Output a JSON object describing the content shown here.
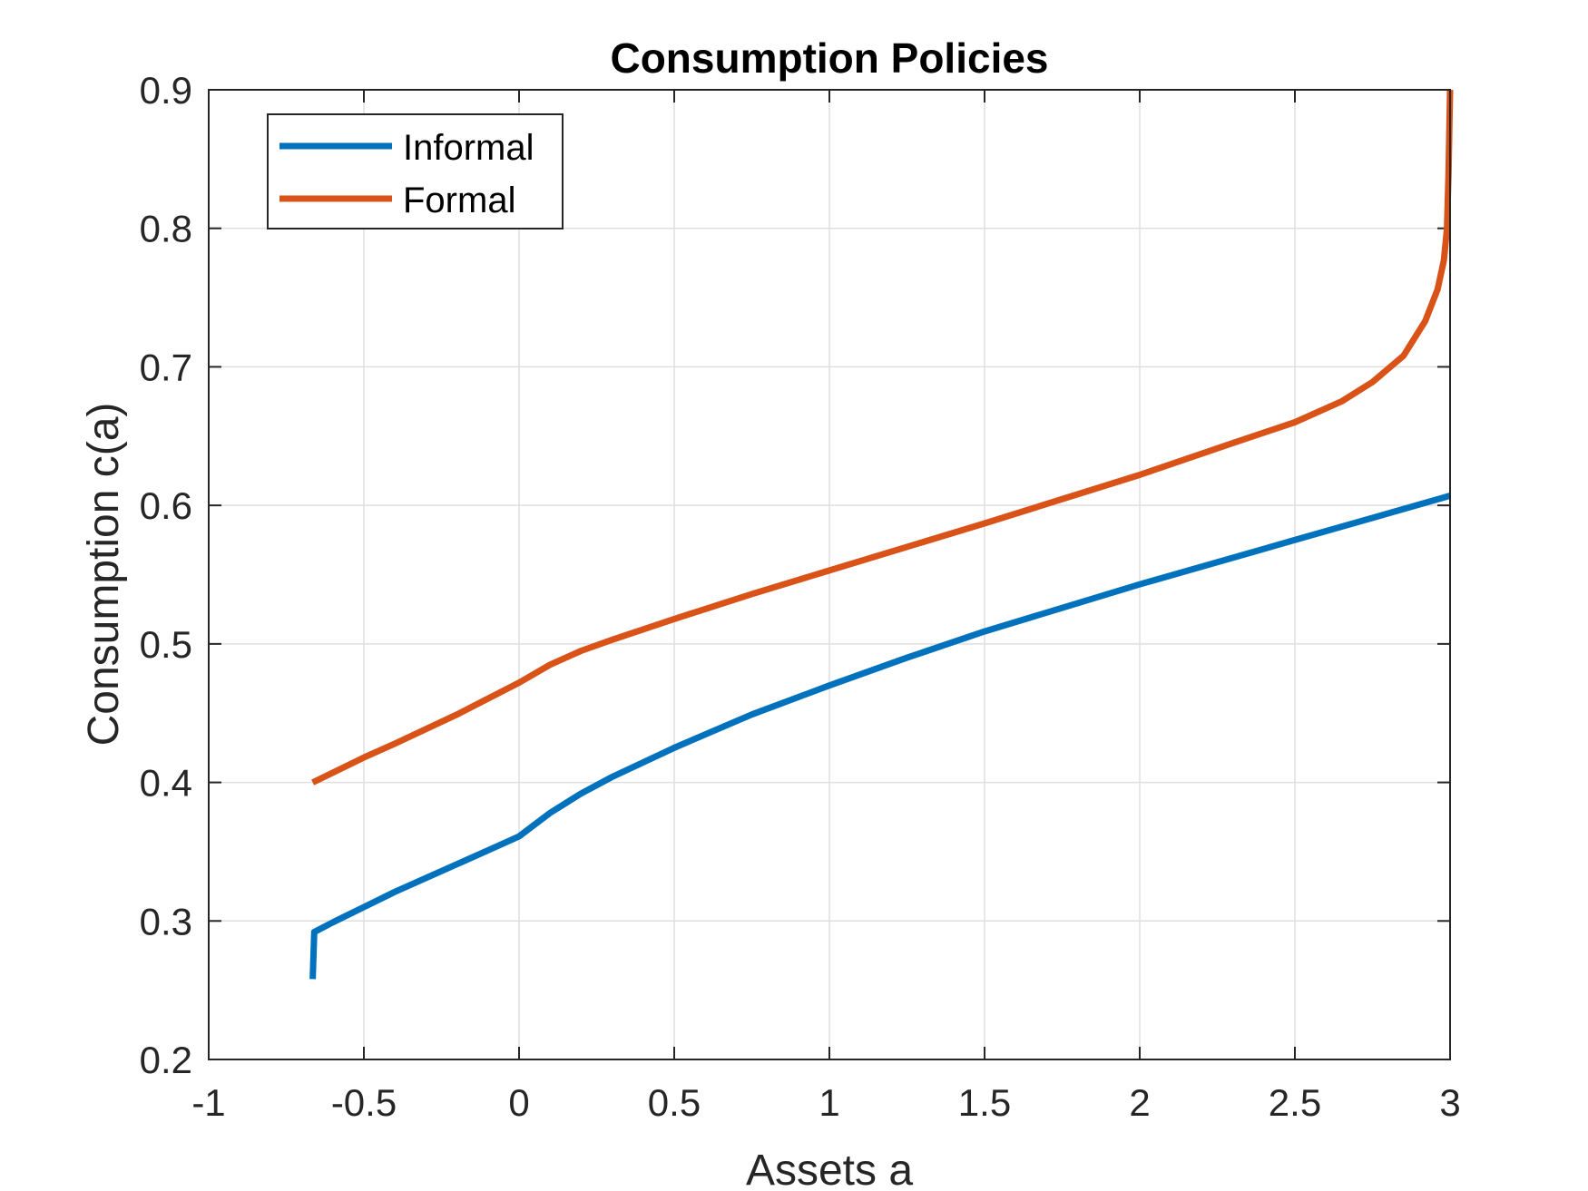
{
  "chart_data": {
    "type": "line",
    "title": "Consumption Policies",
    "xlabel": "Assets a",
    "ylabel": "Consumption c(a)",
    "xlim": [
      -1,
      3
    ],
    "ylim": [
      0.2,
      0.9
    ],
    "xticks": [
      -1,
      -0.5,
      0,
      0.5,
      1,
      1.5,
      2,
      2.5,
      3
    ],
    "xtick_labels": [
      "-1",
      "-0.5",
      "0",
      "0.5",
      "1",
      "1.5",
      "2",
      "2.5",
      "3"
    ],
    "yticks": [
      0.2,
      0.3,
      0.4,
      0.5,
      0.6,
      0.7,
      0.8,
      0.9
    ],
    "ytick_labels": [
      "0.2",
      "0.3",
      "0.4",
      "0.5",
      "0.6",
      "0.7",
      "0.8",
      "0.9"
    ],
    "grid": true,
    "legend_position": "top-left",
    "series": [
      {
        "name": "Informal",
        "color": "#0072BD",
        "x": [
          -0.665,
          -0.66,
          -0.6,
          -0.5,
          -0.4,
          -0.3,
          -0.2,
          -0.1,
          0,
          0.1,
          0.2,
          0.3,
          0.5,
          0.75,
          1,
          1.25,
          1.5,
          2,
          2.5,
          3
        ],
        "y": [
          0.258,
          0.292,
          0.299,
          0.31,
          0.321,
          0.331,
          0.341,
          0.351,
          0.361,
          0.378,
          0.392,
          0.404,
          0.425,
          0.449,
          0.47,
          0.49,
          0.509,
          0.543,
          0.575,
          0.607
        ]
      },
      {
        "name": "Formal",
        "color": "#D95319",
        "x": [
          -0.665,
          -0.5,
          -0.4,
          -0.2,
          0,
          0.1,
          0.2,
          0.3,
          0.5,
          0.75,
          1,
          1.5,
          2,
          2.3,
          2.5,
          2.65,
          2.75,
          2.85,
          2.92,
          2.96,
          2.98,
          2.99,
          2.995,
          3.0
        ],
        "y": [
          0.4,
          0.418,
          0.428,
          0.449,
          0.472,
          0.485,
          0.495,
          0.503,
          0.518,
          0.536,
          0.553,
          0.587,
          0.622,
          0.645,
          0.66,
          0.675,
          0.689,
          0.708,
          0.733,
          0.756,
          0.777,
          0.8,
          0.84,
          0.9
        ]
      }
    ]
  }
}
